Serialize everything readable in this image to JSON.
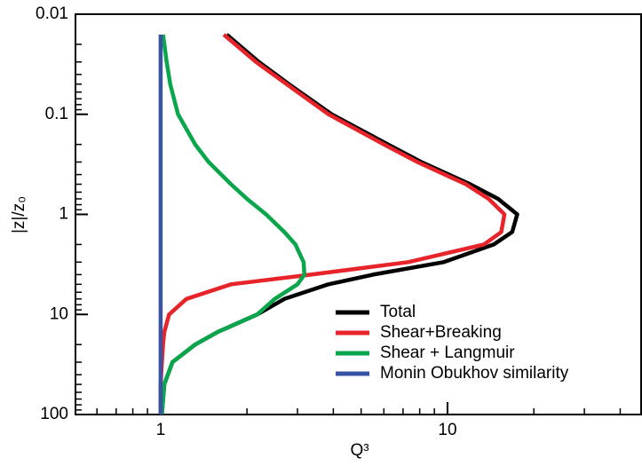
{
  "chart_data": {
    "type": "line",
    "xlabel": "Q³",
    "ylabel": "|z|/z₀",
    "xscale": "log",
    "yscale": "log",
    "y_inverted": true,
    "xlim": [
      0.505,
      47.3
    ],
    "ylim": [
      0.01,
      100
    ],
    "xticks": [
      1,
      10
    ],
    "yticks": [
      0.01,
      0.1,
      1,
      10,
      100
    ],
    "xminorticks": [
      0.6,
      0.7,
      0.8,
      0.9,
      2,
      3,
      4,
      5,
      6,
      7,
      8,
      9,
      20,
      30,
      40
    ],
    "yminorticks": [
      0.02,
      0.03,
      0.04,
      0.05,
      0.06,
      0.07,
      0.08,
      0.09,
      0.2,
      0.3,
      0.4,
      0.5,
      0.6,
      0.7,
      0.8,
      0.9,
      2,
      3,
      4,
      5,
      6,
      7,
      8,
      9,
      20,
      30,
      40,
      50,
      60,
      70,
      80,
      90
    ],
    "legend": "lower right",
    "series": [
      {
        "name": "Total",
        "color": "#000000",
        "y": [
          0.016,
          0.03,
          0.05,
          0.1,
          0.2,
          0.3,
          0.5,
          0.7,
          1,
          1.5,
          2,
          3,
          4,
          5,
          7,
          10,
          15,
          20,
          30,
          50,
          100
        ],
        "x": [
          1.7,
          2.2,
          2.8,
          3.95,
          6.2,
          8.1,
          12,
          15,
          17.5,
          16.8,
          14.5,
          9.7,
          5.5,
          3.85,
          2.7,
          2.17,
          1.58,
          1.32,
          1.1,
          1.03,
          1.01
        ]
      },
      {
        "name": "Shear+Breaking",
        "color": "#e8242b",
        "y": [
          0.016,
          0.03,
          0.05,
          0.1,
          0.2,
          0.3,
          0.5,
          0.7,
          1,
          1.5,
          2,
          3,
          4,
          5,
          7,
          10,
          15,
          20,
          30,
          50,
          100
        ],
        "x": [
          1.66,
          2.15,
          2.75,
          3.85,
          6.0,
          7.85,
          11.6,
          13.9,
          15.8,
          15.4,
          13.4,
          7.3,
          3.34,
          1.76,
          1.23,
          1.07,
          1.03,
          1.02,
          1.01,
          1.0,
          1.0
        ]
      },
      {
        "name": "Shear + Langmuir",
        "color": "#0aa64b",
        "y": [
          0.016,
          0.03,
          0.05,
          0.1,
          0.2,
          0.3,
          0.5,
          0.7,
          1,
          1.5,
          2,
          3,
          4,
          5,
          7,
          10,
          15,
          20,
          30,
          50,
          100
        ],
        "x": [
          1.02,
          1.05,
          1.08,
          1.15,
          1.32,
          1.47,
          1.76,
          2.0,
          2.33,
          2.7,
          2.95,
          3.15,
          3.17,
          3.0,
          2.5,
          2.17,
          1.58,
          1.32,
          1.1,
          1.03,
          1.01
        ]
      },
      {
        "name": "Monin Obukhov similarity",
        "color": "#3853a4",
        "y": [
          0.016,
          100
        ],
        "x": [
          1,
          1
        ]
      }
    ]
  }
}
